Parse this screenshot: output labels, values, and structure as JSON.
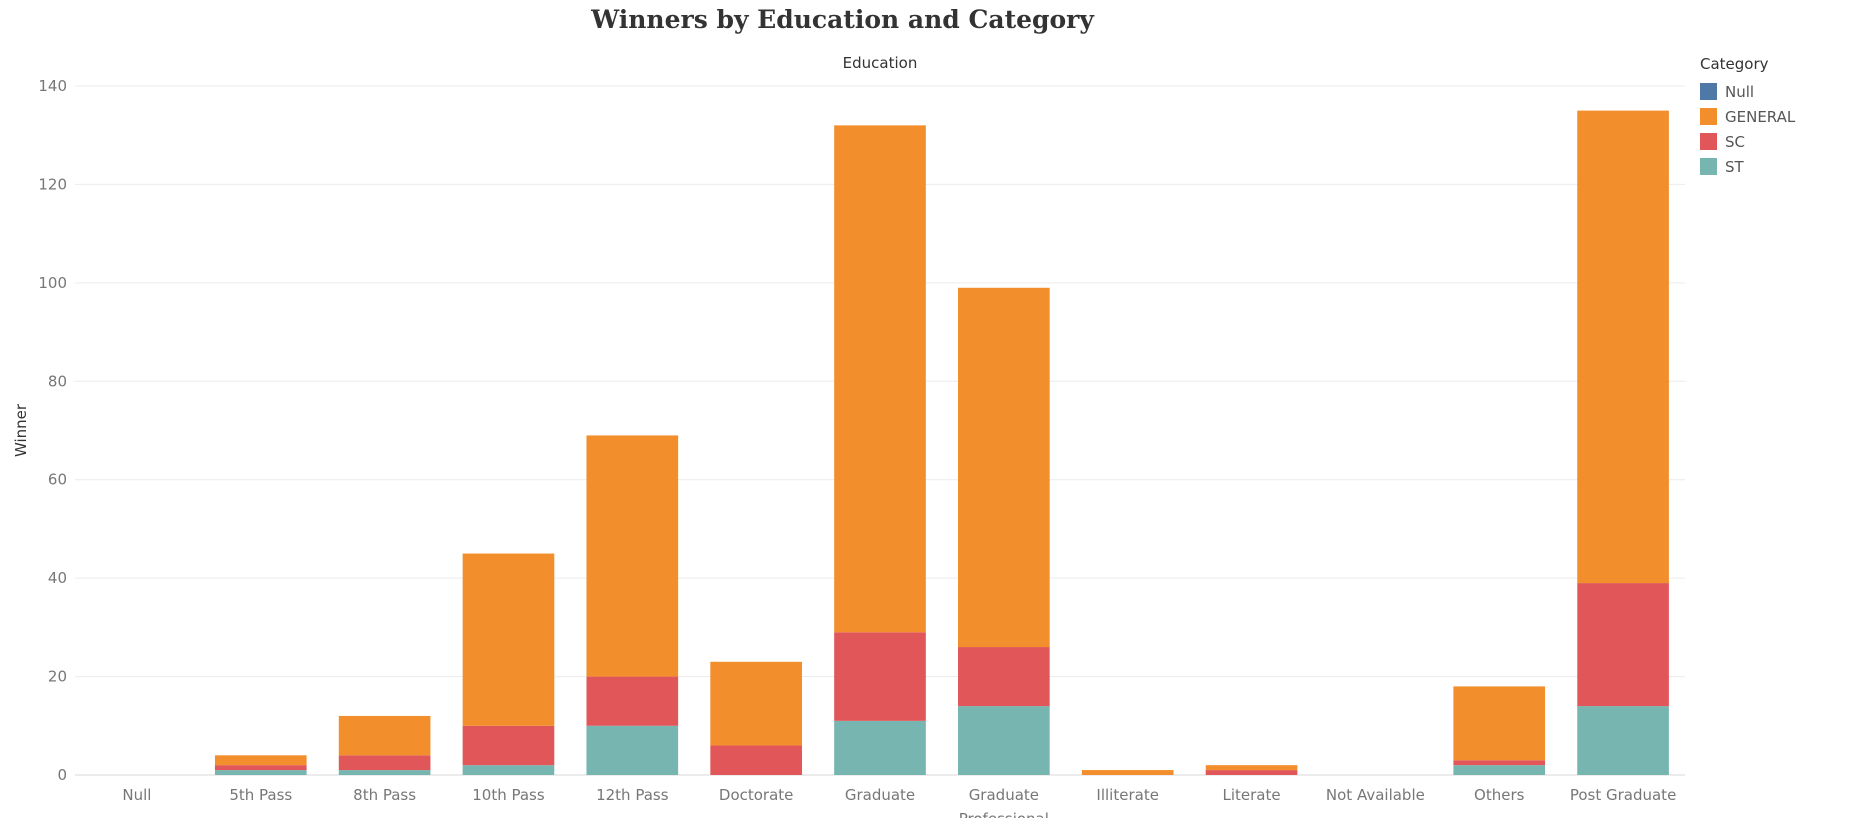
{
  "chart_data": {
    "type": "bar",
    "stacked": true,
    "title": "Winners by Education and Category",
    "xlabel": "Education",
    "ylabel": "Winner",
    "ylim": [
      0,
      140
    ],
    "yticks": [
      0,
      20,
      40,
      60,
      80,
      100,
      120,
      140
    ],
    "grid": true,
    "legend_title": "Category",
    "legend_position": "right",
    "categories": [
      "Null",
      "5th Pass",
      "8th Pass",
      "10th Pass",
      "12th Pass",
      "Doctorate",
      "Graduate",
      "Graduate Professional",
      "Illiterate",
      "Literate",
      "Not Available",
      "Others",
      "Post Graduate"
    ],
    "series": [
      {
        "name": "ST",
        "color": "#76b5b0",
        "values": [
          0,
          1,
          1,
          2,
          10,
          0,
          11,
          14,
          0,
          0,
          0,
          2,
          14
        ]
      },
      {
        "name": "SC",
        "color": "#e15759",
        "values": [
          0,
          1,
          3,
          8,
          10,
          6,
          18,
          12,
          0,
          1,
          0,
          1,
          25
        ]
      },
      {
        "name": "GENERAL",
        "color": "#f28e2b",
        "values": [
          0,
          2,
          8,
          35,
          49,
          17,
          103,
          73,
          1,
          1,
          0,
          15,
          96
        ]
      },
      {
        "name": "Null",
        "color": "#4e79a7",
        "values": [
          0,
          0,
          0,
          0,
          0,
          0,
          0,
          0,
          0,
          0,
          0,
          0,
          0
        ]
      }
    ],
    "legend_order": [
      "Null",
      "GENERAL",
      "SC",
      "ST"
    ]
  }
}
